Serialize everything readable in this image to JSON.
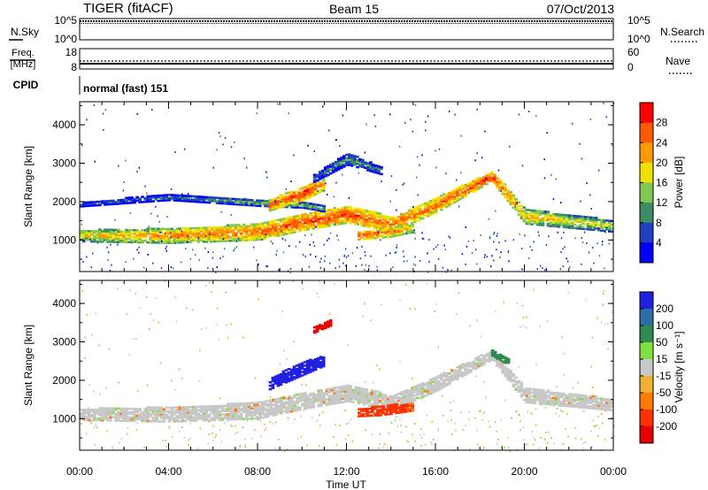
{
  "header": {
    "title": "TIGER (fitACF)",
    "beam": "Beam 15",
    "date": "07/Oct/2013"
  },
  "status_panels": {
    "nsky": {
      "label": "N.Sky",
      "ticks": [
        "10^5",
        "10^0"
      ]
    },
    "nsearch": {
      "label": "N.Search",
      "ticks": [
        "10^5",
        "10^0"
      ]
    },
    "freq": {
      "label_line1": "Freq.",
      "label_line2": "[MHz]",
      "ticks": [
        "18",
        "8"
      ]
    },
    "nave": {
      "label": "Nave",
      "ticks": [
        "60",
        "0"
      ]
    },
    "cpid": {
      "label": "CPID",
      "value": "normal (fast) 151"
    }
  },
  "colorbars": {
    "power": {
      "label": "Power [dB]",
      "ticks": [
        "28",
        "24",
        "20",
        "16",
        "12",
        "8",
        "4"
      ],
      "colors": [
        "#ff0000",
        "#ff5a00",
        "#ff9a00",
        "#f0e000",
        "#80c850",
        "#3c8c64",
        "#2040c0",
        "#0000ff"
      ]
    },
    "velocity": {
      "label": "Velocity [m s⁻¹]",
      "ticks": [
        "200",
        "100",
        "50",
        "15",
        "-15",
        "-50",
        "-100",
        "-200"
      ],
      "colors": [
        "#2020e0",
        "#2e6ea6",
        "#2f8a50",
        "#80e040",
        "#c8c8c8",
        "#f0b030",
        "#ff7a00",
        "#ff3000",
        "#e80000"
      ]
    }
  },
  "chart_data": [
    {
      "type": "heatmap",
      "panel": "power",
      "title": "",
      "xlabel": "",
      "ylabel": "Slant Range [km]",
      "xlim": [
        "00:00",
        "24:00"
      ],
      "ylim": [
        180,
        4600
      ],
      "y_ticks": [
        "1000",
        "2000",
        "3000",
        "4000"
      ],
      "x_tick_labels": [
        "00:00",
        "04:00",
        "08:00",
        "12:00",
        "16:00",
        "20:00",
        "00:00"
      ],
      "scale_db": [
        0,
        30
      ],
      "echo_bands": [
        {
          "hours": [
            0.0,
            4.0,
            8.0,
            10.0,
            12.0,
            14.0,
            16.0,
            18.5,
            20.0,
            24.0
          ],
          "range_km": [
            1100,
            1100,
            1200,
            1450,
            1650,
            1400,
            1900,
            2650,
            1600,
            1350
          ],
          "width_km": [
            300,
            380,
            420,
            420,
            420,
            400,
            380,
            250,
            380,
            300
          ],
          "power_db": [
            18,
            22,
            24,
            26,
            26,
            24,
            24,
            27,
            20,
            16
          ]
        },
        {
          "hours": [
            0.0,
            4.0,
            8.0,
            10.0,
            11.0
          ],
          "range_km": [
            1920,
            2100,
            1950,
            1900,
            1800
          ],
          "width_km": [
            120,
            150,
            150,
            150,
            150
          ],
          "power_db": [
            8,
            10,
            14,
            14,
            12
          ]
        },
        {
          "hours": [
            8.5,
            10.0,
            11.0
          ],
          "range_km": [
            1900,
            2200,
            2450
          ],
          "width_km": [
            300,
            350,
            300
          ],
          "power_db": [
            24,
            28,
            22
          ]
        },
        {
          "hours": [
            10.5,
            12.0,
            13.5
          ],
          "range_km": [
            2600,
            3100,
            2800
          ],
          "width_km": [
            200,
            300,
            200
          ],
          "power_db": [
            8,
            12,
            10
          ]
        },
        {
          "hours": [
            12.5,
            14.0,
            15.0
          ],
          "range_km": [
            1100,
            1200,
            1300
          ],
          "width_km": [
            200,
            250,
            200
          ],
          "power_db": [
            26,
            24,
            20
          ]
        }
      ]
    },
    {
      "type": "heatmap",
      "panel": "velocity",
      "title": "",
      "xlabel": "Time UT",
      "ylabel": "Slant Range [km]",
      "xlim": [
        "00:00",
        "24:00"
      ],
      "ylim": [
        180,
        4600
      ],
      "y_ticks": [
        "1000",
        "2000",
        "3000",
        "4000"
      ],
      "x_tick_labels": [
        "00:00",
        "04:00",
        "08:00",
        "12:00",
        "16:00",
        "20:00",
        "00:00"
      ],
      "scale_ms": [
        -250,
        250
      ],
      "echo_bands": [
        {
          "hours": [
            0.0,
            4.0,
            8.0,
            10.0,
            12.0,
            14.0,
            16.0,
            18.5,
            20.0,
            24.0
          ],
          "range_km": [
            1100,
            1100,
            1200,
            1450,
            1650,
            1400,
            1900,
            2650,
            1600,
            1350
          ],
          "width_km": [
            300,
            380,
            420,
            420,
            420,
            400,
            380,
            250,
            380,
            300
          ],
          "velocity_ms": [
            0,
            0,
            0,
            0,
            0,
            0,
            0,
            0,
            0,
            0
          ]
        },
        {
          "hours": [
            8.5,
            10.0,
            11.0
          ],
          "range_km": [
            1900,
            2300,
            2500
          ],
          "width_km": [
            300,
            350,
            250
          ],
          "velocity_ms": [
            200,
            250,
            180
          ]
        },
        {
          "hours": [
            12.5,
            13.5,
            15.0
          ],
          "range_km": [
            1150,
            1200,
            1300
          ],
          "width_km": [
            200,
            250,
            200
          ],
          "velocity_ms": [
            -80,
            -110,
            -70
          ]
        },
        {
          "hours": [
            18.5,
            19.3
          ],
          "range_km": [
            2700,
            2450
          ],
          "width_km": [
            150,
            150
          ],
          "velocity_ms": [
            40,
            40
          ]
        },
        {
          "hours": [
            10.5,
            11.3
          ],
          "range_km": [
            3300,
            3500
          ],
          "width_km": [
            150,
            150
          ],
          "velocity_ms": [
            -200,
            -200
          ]
        }
      ]
    }
  ]
}
